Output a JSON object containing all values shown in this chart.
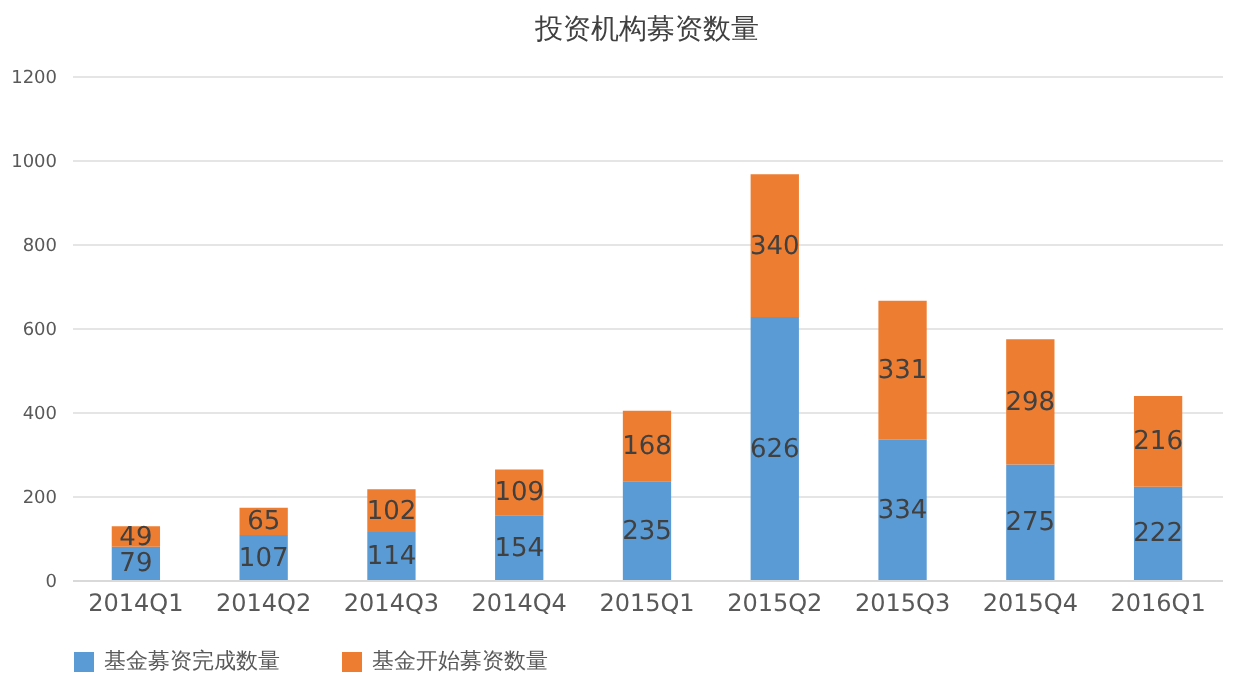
{
  "chart_data": {
    "type": "bar",
    "title": "投资机构募资数量",
    "categories": [
      "2014Q1",
      "2014Q2",
      "2014Q3",
      "2014Q4",
      "2015Q1",
      "2015Q2",
      "2015Q3",
      "2015Q4",
      "2016Q1"
    ],
    "series": [
      {
        "name": "基金募资完成数量",
        "color": "#5b9bd5",
        "values": [
          79,
          107,
          114,
          154,
          235,
          626,
          334,
          275,
          222
        ]
      },
      {
        "name": "基金开始募资数量",
        "color": "#ed7d31",
        "values": [
          49,
          65,
          102,
          109,
          168,
          340,
          331,
          298,
          216
        ]
      }
    ],
    "stacked": true,
    "data_labels": true,
    "ylim": [
      0,
      1200
    ],
    "yticks": [
      0,
      200,
      400,
      600,
      800,
      1000,
      1200
    ],
    "grid": "y",
    "legend": "bottom"
  }
}
